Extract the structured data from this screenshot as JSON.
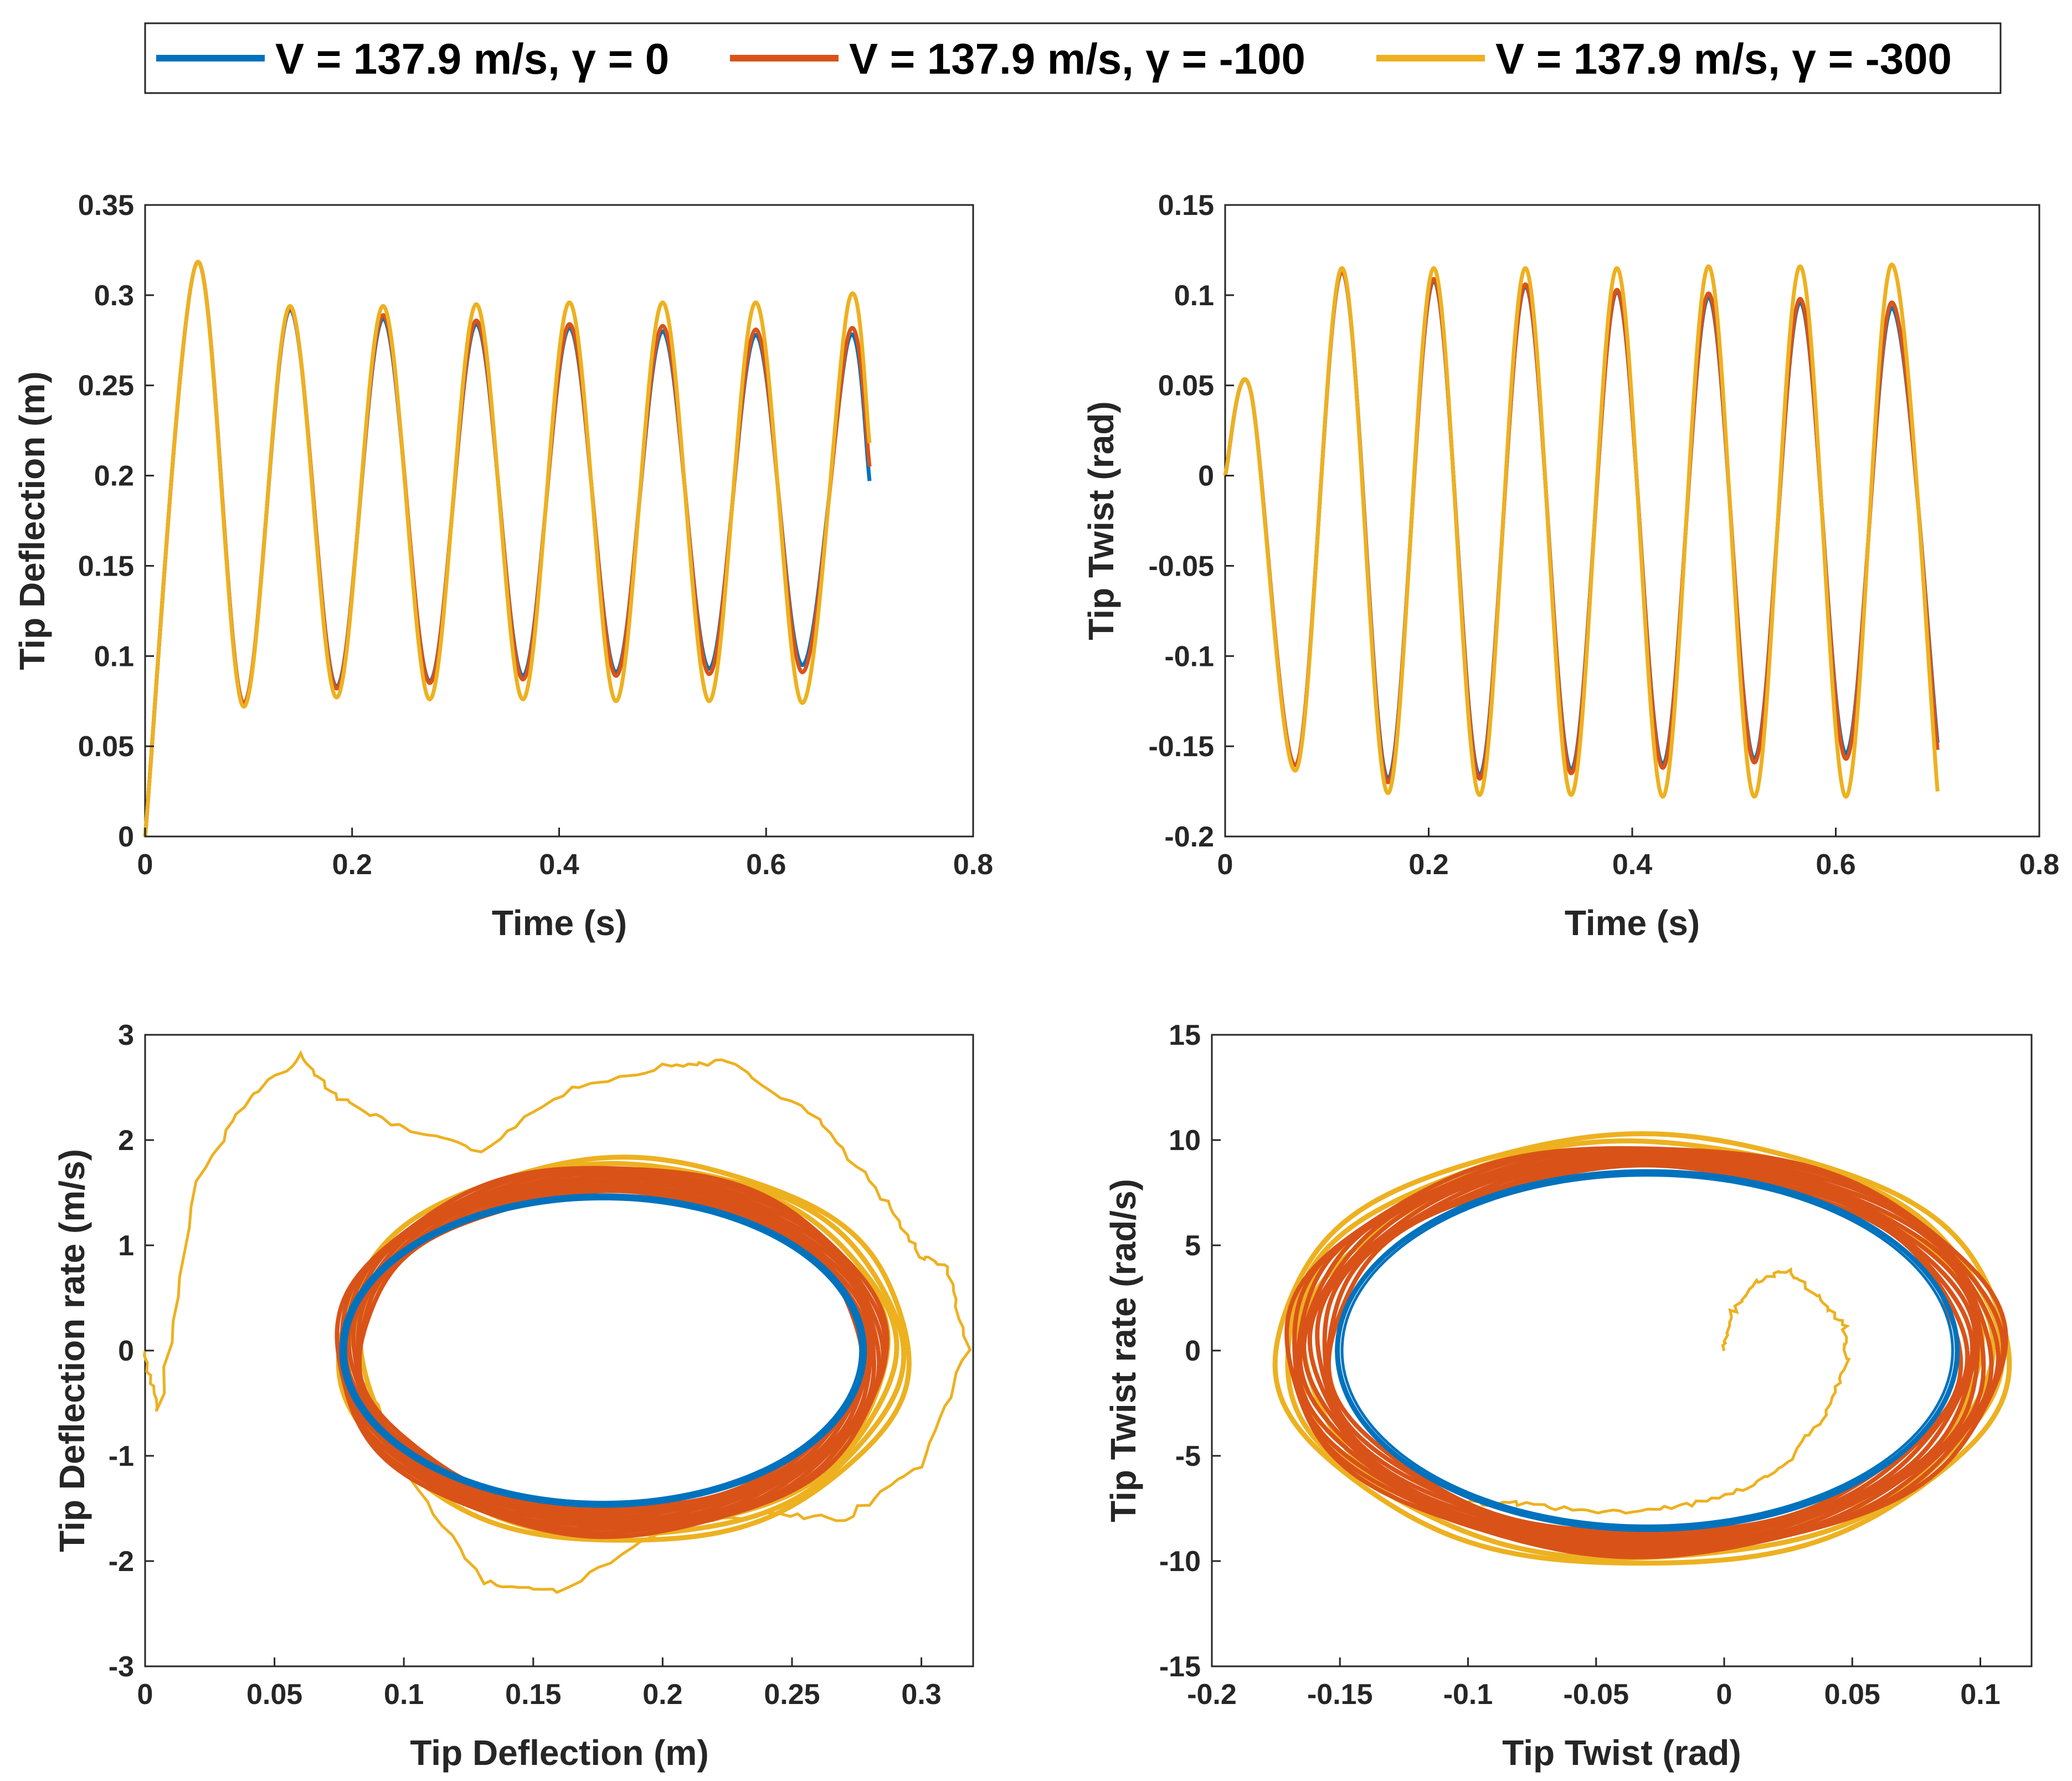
{
  "colors": {
    "blue": "#0072BD",
    "red": "#D95319",
    "yellow": "#EDB120",
    "axis": "#262626"
  },
  "legend": {
    "entries": [
      {
        "label": "V = 137.9 m/s, γ = 0",
        "color": "#0072BD"
      },
      {
        "label": "V = 137.9 m/s, γ = -100",
        "color": "#D95319"
      },
      {
        "label": "V = 137.9 m/s, γ = -300",
        "color": "#EDB120"
      }
    ]
  },
  "chart_data": [
    {
      "id": "deflection-time",
      "type": "line",
      "xlabel": "Time (s)",
      "ylabel": "Tip Deflection (m)",
      "xlim": [
        0,
        0.8
      ],
      "ylim": [
        0,
        0.35
      ],
      "xticks": [
        0,
        0.2,
        0.4,
        0.6,
        0.8
      ],
      "xtick_labels": [
        "0",
        "0.2",
        "0.4",
        "0.6",
        "0.8"
      ],
      "yticks": [
        0,
        0.05,
        0.1,
        0.15,
        0.2,
        0.25,
        0.3,
        0.35
      ],
      "ytick_labels": [
        "0",
        "0.05",
        "0.1",
        "0.15",
        "0.2",
        "0.25",
        "0.3",
        "0.35"
      ],
      "series": [
        {
          "name": "V = 137.9 m/s, γ = 0",
          "x": [
            0,
            0.05,
            0.095,
            0.14,
            0.185,
            0.23,
            0.275,
            0.32,
            0.365,
            0.41,
            0.455,
            0.5,
            0.545,
            0.59,
            0.635,
            0.68,
            0.7
          ],
          "y": [
            0,
            0.318,
            0.074,
            0.292,
            0.083,
            0.287,
            0.086,
            0.284,
            0.089,
            0.282,
            0.091,
            0.28,
            0.093,
            0.278,
            0.095,
            0.276,
            0.197
          ]
        },
        {
          "name": "V = 137.9 m/s, γ = -100",
          "x": [
            0,
            0.05,
            0.095,
            0.14,
            0.185,
            0.23,
            0.275,
            0.32,
            0.365,
            0.41,
            0.455,
            0.5,
            0.545,
            0.59,
            0.635,
            0.68,
            0.7
          ],
          "y": [
            0,
            0.318,
            0.074,
            0.293,
            0.082,
            0.289,
            0.085,
            0.286,
            0.087,
            0.284,
            0.089,
            0.283,
            0.09,
            0.281,
            0.091,
            0.279,
            0.205
          ]
        },
        {
          "name": "V = 137.9 m/s, γ = -300",
          "x": [
            0,
            0.05,
            0.095,
            0.14,
            0.185,
            0.23,
            0.275,
            0.32,
            0.365,
            0.41,
            0.455,
            0.5,
            0.545,
            0.59,
            0.635,
            0.68,
            0.7
          ],
          "y": [
            0,
            0.318,
            0.072,
            0.294,
            0.077,
            0.294,
            0.076,
            0.295,
            0.076,
            0.296,
            0.075,
            0.296,
            0.075,
            0.296,
            0.074,
            0.297,
            0.218
          ]
        }
      ]
    },
    {
      "id": "twist-time",
      "type": "line",
      "xlabel": "Time (s)",
      "ylabel": "Tip Twist (rad)",
      "xlim": [
        0,
        0.8
      ],
      "ylim": [
        -0.2,
        0.15
      ],
      "xticks": [
        0,
        0.2,
        0.4,
        0.6,
        0.8
      ],
      "xtick_labels": [
        "0",
        "0.2",
        "0.4",
        "0.6",
        "0.8"
      ],
      "yticks": [
        -0.2,
        -0.15,
        -0.1,
        -0.05,
        0,
        0.05,
        0.1,
        0.15
      ],
      "ytick_labels": [
        "-0.2",
        "-0.15",
        "-0.1",
        "-0.05",
        "0",
        "0.05",
        "0.1",
        "0.15"
      ],
      "series": [
        {
          "name": "V = 137.9 m/s, γ = 0",
          "x": [
            0,
            0.025,
            0.07,
            0.115,
            0.16,
            0.205,
            0.25,
            0.295,
            0.34,
            0.385,
            0.43,
            0.475,
            0.52,
            0.565,
            0.61,
            0.655,
            0.7
          ],
          "y": [
            0,
            0.047,
            -0.16,
            0.113,
            -0.168,
            0.108,
            -0.166,
            0.105,
            -0.163,
            0.102,
            -0.16,
            0.099,
            -0.157,
            0.096,
            -0.154,
            0.093,
            -0.148
          ]
        },
        {
          "name": "V = 137.9 m/s, γ = -100",
          "x": [
            0,
            0.025,
            0.07,
            0.115,
            0.16,
            0.205,
            0.25,
            0.295,
            0.34,
            0.385,
            0.43,
            0.475,
            0.52,
            0.565,
            0.61,
            0.655,
            0.7
          ],
          "y": [
            0,
            0.047,
            -0.16,
            0.113,
            -0.17,
            0.109,
            -0.168,
            0.106,
            -0.165,
            0.103,
            -0.162,
            0.101,
            -0.159,
            0.098,
            -0.157,
            0.096,
            -0.152
          ]
        },
        {
          "name": "V = 137.9 m/s, γ = -300",
          "x": [
            0,
            0.025,
            0.07,
            0.115,
            0.16,
            0.205,
            0.25,
            0.295,
            0.34,
            0.385,
            0.43,
            0.475,
            0.52,
            0.565,
            0.61,
            0.655,
            0.7
          ],
          "y": [
            0,
            0.047,
            -0.163,
            0.115,
            -0.176,
            0.115,
            -0.177,
            0.115,
            -0.177,
            0.115,
            -0.178,
            0.116,
            -0.178,
            0.116,
            -0.178,
            0.117,
            -0.175
          ]
        }
      ]
    },
    {
      "id": "deflection-phase",
      "type": "line",
      "xlabel": "Tip Deflection (m)",
      "ylabel": "Tip Deflection rate (m/s)",
      "xlim": [
        0,
        0.32
      ],
      "ylim": [
        -3,
        3
      ],
      "xticks": [
        0,
        0.05,
        0.1,
        0.15,
        0.2,
        0.25,
        0.3
      ],
      "xtick_labels": [
        "0",
        "0.05",
        "0.1",
        "0.15",
        "0.2",
        "0.25",
        "0.3"
      ],
      "yticks": [
        -3,
        -2,
        -1,
        0,
        1,
        2,
        3
      ],
      "ytick_labels": [
        "-3",
        "-2",
        "-1",
        "0",
        "1",
        "2",
        "3"
      ],
      "series": [
        {
          "name": "V = 137.9 m/s, γ = 0",
          "kind": "limit-cycle",
          "center": [
            0.177,
            0
          ],
          "rx": 0.101,
          "ry": 1.47
        },
        {
          "name": "V = 137.9 m/s, γ = -100",
          "kind": "limit-cycle band",
          "center": [
            0.18,
            0
          ],
          "rx_range": [
            0.097,
            0.106
          ],
          "ry_range": [
            1.5,
            1.75
          ]
        },
        {
          "name": "V = 137.9 m/s, γ = -300",
          "kind": "limit-cycle + transient",
          "center": [
            0.185,
            0
          ],
          "rx": 0.11,
          "ry": 1.82,
          "transient_x": [
            0,
            0.005,
            0.02,
            0.04,
            0.06,
            0.075,
            0.1,
            0.13,
            0.165,
            0.2,
            0.225,
            0.26,
            0.285,
            0.3,
            0.31,
            0.318,
            0.3,
            0.27,
            0.24,
            0.2,
            0.16,
            0.13,
            0.1,
            0.085
          ],
          "transient_y": [
            0,
            -0.6,
            1.6,
            2.4,
            2.8,
            2.4,
            2.1,
            1.9,
            2.5,
            2.7,
            2.75,
            2.2,
            1.45,
            0.9,
            0.8,
            0,
            -1.1,
            -1.6,
            -1.55,
            -1.7,
            -2.3,
            -2.2,
            -1.1,
            -0.3
          ]
        }
      ]
    },
    {
      "id": "twist-phase",
      "type": "line",
      "xlabel": "Tip Twist (rad)",
      "ylabel": "Tip Twist rate (rad/s)",
      "xlim": [
        -0.2,
        0.12
      ],
      "ylim": [
        -15,
        15
      ],
      "xticks": [
        -0.2,
        -0.15,
        -0.1,
        -0.05,
        0,
        0.05,
        0.1
      ],
      "xtick_labels": [
        "-0.2",
        "-0.15",
        "-0.1",
        "-0.05",
        "0",
        "0.05",
        "0.1"
      ],
      "yticks": [
        -15,
        -10,
        -5,
        0,
        5,
        10,
        15
      ],
      "ytick_labels": [
        "-15",
        "-10",
        "-5",
        "0",
        "5",
        "10",
        "15"
      ],
      "series": [
        {
          "name": "V = 137.9 m/s, γ = 0",
          "kind": "limit-cycle",
          "center": [
            -0.03,
            0
          ],
          "rx": 0.121,
          "ry": 8.5
        },
        {
          "name": "V = 137.9 m/s, γ = -100",
          "kind": "limit-cycle band",
          "center": [
            -0.031,
            0
          ],
          "rx_range": [
            0.123,
            0.14
          ],
          "ry_range": [
            8.7,
            9.7
          ]
        },
        {
          "name": "V = 137.9 m/s, γ = -300",
          "kind": "limit-cycle + transient",
          "center": [
            -0.032,
            0
          ],
          "rx": 0.143,
          "ry": 10.2,
          "transient_x": [
            0,
            0.003,
            0.013,
            0.025,
            0.037,
            0.047,
            0.048,
            0.04,
            0.025,
            0.005,
            -0.02,
            -0.05,
            -0.08,
            -0.1
          ],
          "transient_y": [
            0,
            1.8,
            3.3,
            3.8,
            2.5,
            1.3,
            -0.7,
            -3.0,
            -5.3,
            -6.7,
            -7.5,
            -7.7,
            -7.3,
            -7.2
          ]
        }
      ]
    }
  ]
}
